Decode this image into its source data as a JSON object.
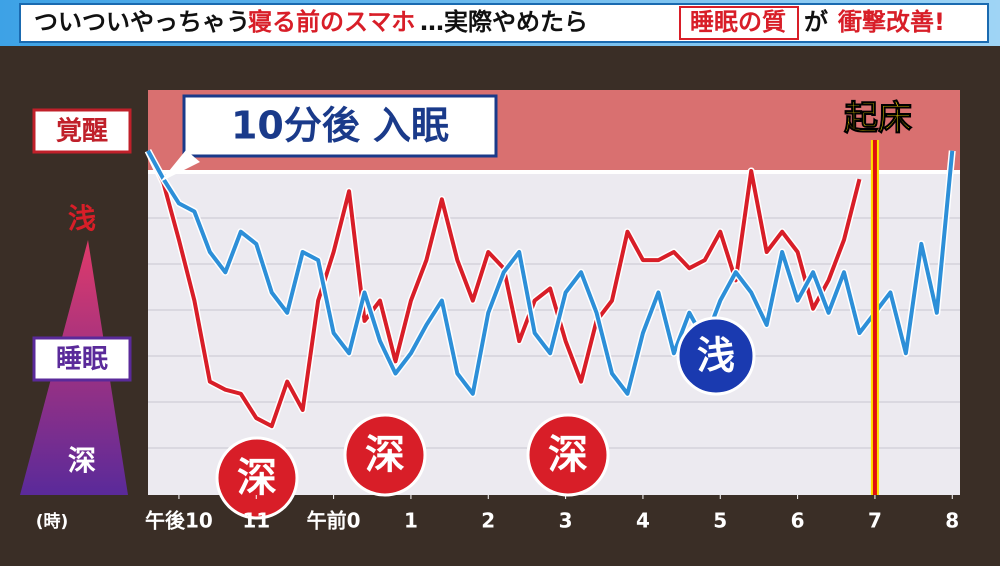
{
  "chart_data": {
    "type": "line",
    "title_segments": [
      "ついついやっちゃう",
      "寝る前のスマホ",
      "…実際やめたら",
      "睡眠の質",
      "が",
      "衝撃改善!"
    ],
    "y_labels": [
      "覚醒",
      "浅",
      "睡眠",
      "深"
    ],
    "x_label": "(時)",
    "annotations": {
      "sleep_onset": "10分後 入眠",
      "wake": "起床",
      "deep": [
        "深",
        "深",
        "深"
      ],
      "shallow": "浅"
    },
    "x": [
      21.6,
      21.8,
      22.0,
      22.2,
      22.4,
      22.6,
      22.8,
      23.0,
      23.2,
      23.4,
      23.6,
      23.8,
      24.0,
      24.2,
      24.4,
      24.6,
      24.8,
      25.0,
      25.2,
      25.4,
      25.6,
      25.8,
      26.0,
      26.2,
      26.4,
      26.6,
      26.8,
      27.0,
      27.2,
      27.4,
      27.6,
      27.8,
      28.0,
      28.2,
      28.4,
      28.6,
      28.8,
      29.0,
      29.2,
      29.4,
      29.6,
      29.8,
      30.0,
      30.2,
      30.4,
      30.6,
      30.8,
      31.0,
      31.2,
      31.4,
      31.6,
      31.8,
      32.0
    ],
    "series": [
      {
        "color": "#d81e28",
        "values": [
          85,
          77,
          63,
          48,
          28,
          26,
          25,
          19,
          17,
          28,
          21,
          48,
          60,
          75,
          43,
          48,
          33,
          48,
          58,
          73,
          58,
          48,
          60,
          56,
          38,
          48,
          51,
          38,
          28,
          43,
          48,
          65,
          58,
          58,
          60,
          56,
          58,
          65,
          53,
          80,
          60,
          65,
          60,
          46,
          53,
          63,
          78,
          null,
          null,
          null,
          null,
          null,
          null
        ]
      },
      {
        "color": "#2d8fd8",
        "values": [
          85,
          78,
          72,
          70,
          60,
          55,
          65,
          62,
          50,
          45,
          60,
          58,
          40,
          35,
          50,
          38,
          30,
          35,
          42,
          48,
          30,
          25,
          45,
          55,
          60,
          40,
          35,
          50,
          55,
          45,
          30,
          25,
          40,
          50,
          35,
          45,
          38,
          48,
          55,
          50,
          42,
          60,
          48,
          55,
          45,
          55,
          40,
          45,
          50,
          35,
          62,
          45,
          85
        ]
      }
    ],
    "xlim": [
      21.6,
      32.1
    ],
    "ylim": [
      0,
      100
    ],
    "xticks": [
      {
        "value": 22,
        "label": "午後10"
      },
      {
        "value": 23,
        "label": "11"
      },
      {
        "value": 24,
        "label": "午前0"
      },
      {
        "value": 25,
        "label": "1"
      },
      {
        "value": 26,
        "label": "2"
      },
      {
        "value": 27,
        "label": "3"
      },
      {
        "value": 28,
        "label": "4"
      },
      {
        "value": 29,
        "label": "5"
      },
      {
        "value": 30,
        "label": "6"
      },
      {
        "value": 31,
        "label": "7"
      },
      {
        "value": 32,
        "label": "8"
      }
    ]
  }
}
